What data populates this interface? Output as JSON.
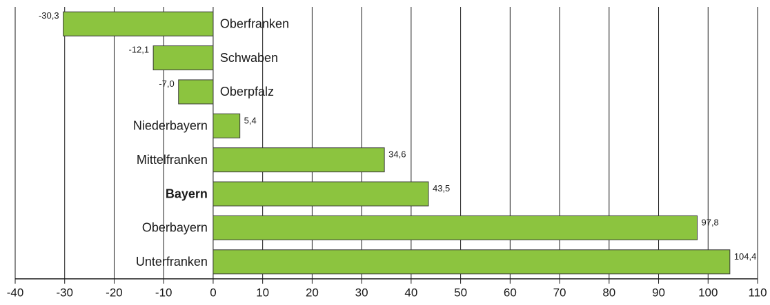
{
  "chart_data": {
    "type": "bar",
    "orientation": "horizontal",
    "categories": [
      "Oberfranken",
      "Schwaben",
      "Oberpfalz",
      "Niederbayern",
      "Mittelfranken",
      "Bayern",
      "Oberbayern",
      "Unterfranken"
    ],
    "values": [
      -30.3,
      -12.1,
      -7.0,
      5.4,
      34.6,
      43.5,
      97.8,
      104.4
    ],
    "value_labels": [
      "-30,3",
      "-12,1",
      "-7,0",
      "5,4",
      "34,6",
      "43,5",
      "97,8",
      "104,4"
    ],
    "color": "#8cc43f",
    "edge_color": "#3a3a3a",
    "bold_category_index": 5,
    "xlim": [
      -40,
      110
    ],
    "xticks": [
      -40,
      -30,
      -20,
      -10,
      0,
      10,
      20,
      30,
      40,
      50,
      60,
      70,
      80,
      90,
      100,
      110
    ],
    "grid": true
  }
}
